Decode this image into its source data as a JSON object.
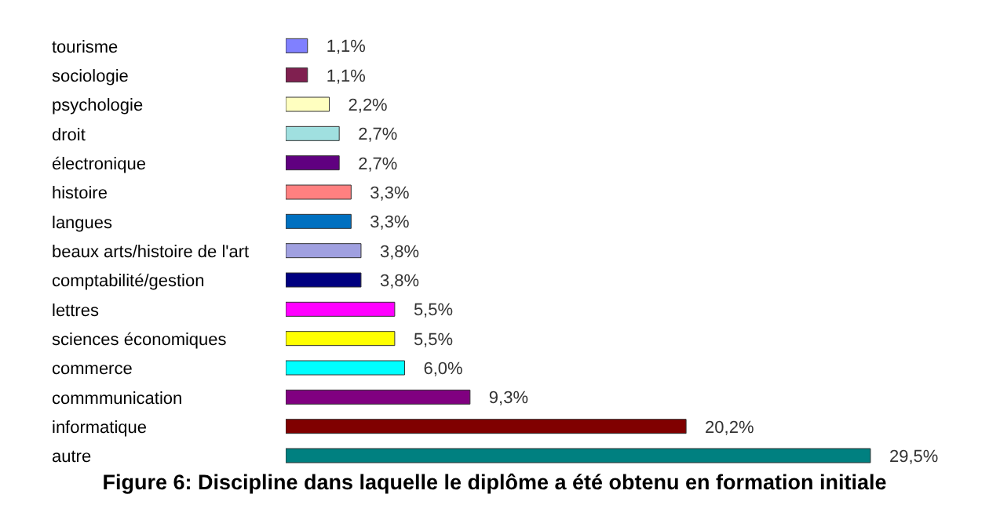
{
  "chart_data": {
    "type": "bar",
    "orientation": "horizontal",
    "title": "Figure 6: Discipline dans laquelle le diplôme a été obtenu en formation initiale",
    "categories": [
      "tourisme",
      "sociologie",
      "psychologie",
      "droit",
      "électronique",
      "histoire",
      "langues",
      "beaux arts/histoire de l'art",
      "comptabilité/gestion",
      "lettres",
      "sciences économiques",
      "commerce",
      "commmunication",
      "informatique",
      "autre"
    ],
    "values": [
      1.1,
      1.1,
      2.2,
      2.7,
      2.7,
      3.3,
      3.3,
      3.8,
      3.8,
      5.5,
      5.5,
      6.0,
      9.3,
      20.2,
      29.5
    ],
    "value_labels": [
      "1,1%",
      "1,1%",
      "2,2%",
      "2,7%",
      "2,7%",
      "3,3%",
      "3,3%",
      "3,8%",
      "3,8%",
      "5,5%",
      "5,5%",
      "6,0%",
      "9,3%",
      "20,2%",
      "29,5%"
    ],
    "colors": [
      "#8080ff",
      "#802050",
      "#ffffc0",
      "#a0e0e0",
      "#600080",
      "#ff8080",
      "#0070c0",
      "#a0a0e0",
      "#000080",
      "#ff00ff",
      "#ffff00",
      "#00ffff",
      "#800080",
      "#800000",
      "#008080"
    ],
    "grid": false,
    "legend": false
  }
}
